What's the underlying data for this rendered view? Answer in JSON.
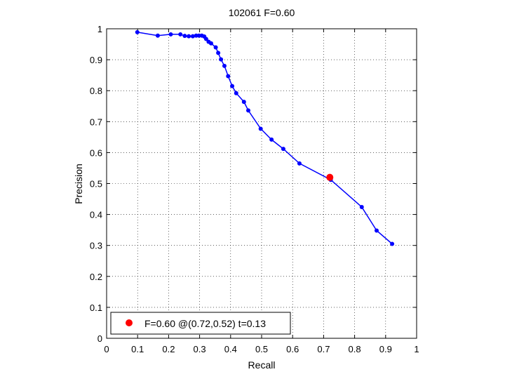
{
  "chart_data": {
    "type": "line",
    "title": "102061 F=0.60",
    "xlabel": "Recall",
    "ylabel": "Precision",
    "xlim": [
      0,
      1
    ],
    "ylim": [
      0,
      1
    ],
    "grid": true,
    "xticks": [
      "0",
      "0.1",
      "0.2",
      "0.3",
      "0.4",
      "0.5",
      "0.6",
      "0.7",
      "0.8",
      "0.9",
      "1"
    ],
    "yticks": [
      "0",
      "0.1",
      "0.2",
      "0.3",
      "0.4",
      "0.5",
      "0.6",
      "0.7",
      "0.8",
      "0.9",
      "1"
    ],
    "series": [
      {
        "color": "#0000ff",
        "points": [
          [
            0.099,
            0.989
          ],
          [
            0.165,
            0.978
          ],
          [
            0.207,
            0.982
          ],
          [
            0.238,
            0.982
          ],
          [
            0.252,
            0.977
          ],
          [
            0.265,
            0.976
          ],
          [
            0.278,
            0.976
          ],
          [
            0.289,
            0.978
          ],
          [
            0.298,
            0.978
          ],
          [
            0.307,
            0.978
          ],
          [
            0.315,
            0.975
          ],
          [
            0.321,
            0.967
          ],
          [
            0.329,
            0.958
          ],
          [
            0.337,
            0.953
          ],
          [
            0.352,
            0.94
          ],
          [
            0.36,
            0.922
          ],
          [
            0.369,
            0.901
          ],
          [
            0.38,
            0.88
          ],
          [
            0.392,
            0.847
          ],
          [
            0.405,
            0.815
          ],
          [
            0.418,
            0.792
          ],
          [
            0.443,
            0.764
          ],
          [
            0.457,
            0.736
          ],
          [
            0.497,
            0.677
          ],
          [
            0.532,
            0.642
          ],
          [
            0.57,
            0.612
          ],
          [
            0.622,
            0.565
          ],
          [
            0.723,
            0.512
          ],
          [
            0.823,
            0.424
          ],
          [
            0.871,
            0.348
          ],
          [
            0.921,
            0.305
          ]
        ]
      }
    ],
    "highlight": {
      "x": 0.72,
      "y": 0.52,
      "color": "#ff0000"
    },
    "legend": {
      "placement": "bottom-left",
      "label": "F=0.60 @(0.72,0.52) t=0.13"
    }
  }
}
